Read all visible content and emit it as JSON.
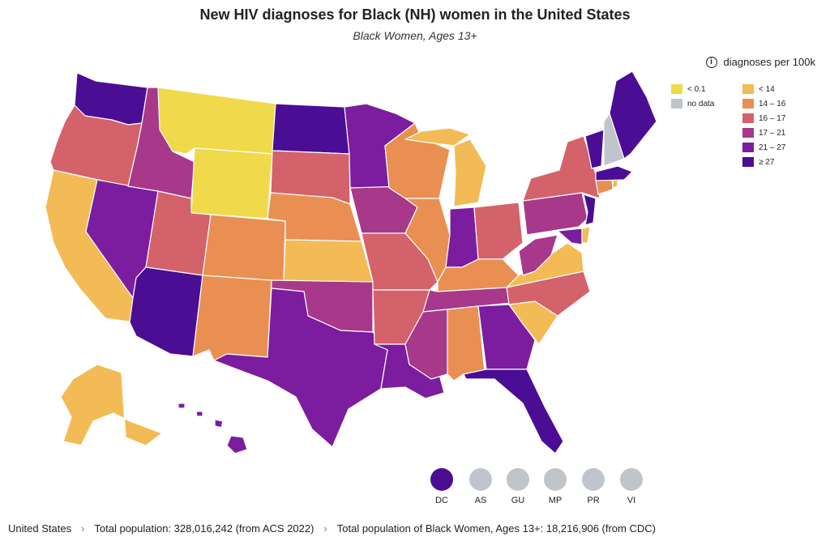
{
  "title": "New HIV diagnoses for Black (NH) women in the United States",
  "subtitle": "Black Women, Ages 13+",
  "metric_label": "diagnoses per 100k",
  "info_icon": "info-icon",
  "legend": [
    {
      "label": "< 0.1",
      "color": "#f0d94a"
    },
    {
      "label": "no data",
      "color": "#c0c4cb"
    },
    {
      "label": "< 14",
      "color": "#f3bb55"
    },
    {
      "label": "14 – 16",
      "color": "#ea8f52"
    },
    {
      "label": "16 – 17",
      "color": "#d4626a"
    },
    {
      "label": "17 – 21",
      "color": "#a8388a"
    },
    {
      "label": "21 – 27",
      "color": "#7b1d9e"
    },
    {
      "label": "≥ 27",
      "color": "#4a0d94"
    }
  ],
  "territories": [
    {
      "label": "DC",
      "color": "#4a0d94"
    },
    {
      "label": "AS",
      "color": "#c0c4cb"
    },
    {
      "label": "GU",
      "color": "#c0c4cb"
    },
    {
      "label": "MP",
      "color": "#c0c4cb"
    },
    {
      "label": "PR",
      "color": "#c0c4cb"
    },
    {
      "label": "VI",
      "color": "#c0c4cb"
    }
  ],
  "footer": {
    "breadcrumb": "United States",
    "total_population": "Total population: 328,016,242 (from ACS 2022)",
    "group_population": "Total population of Black Women, Ages 13+: 18,216,906 (from CDC)"
  }
}
